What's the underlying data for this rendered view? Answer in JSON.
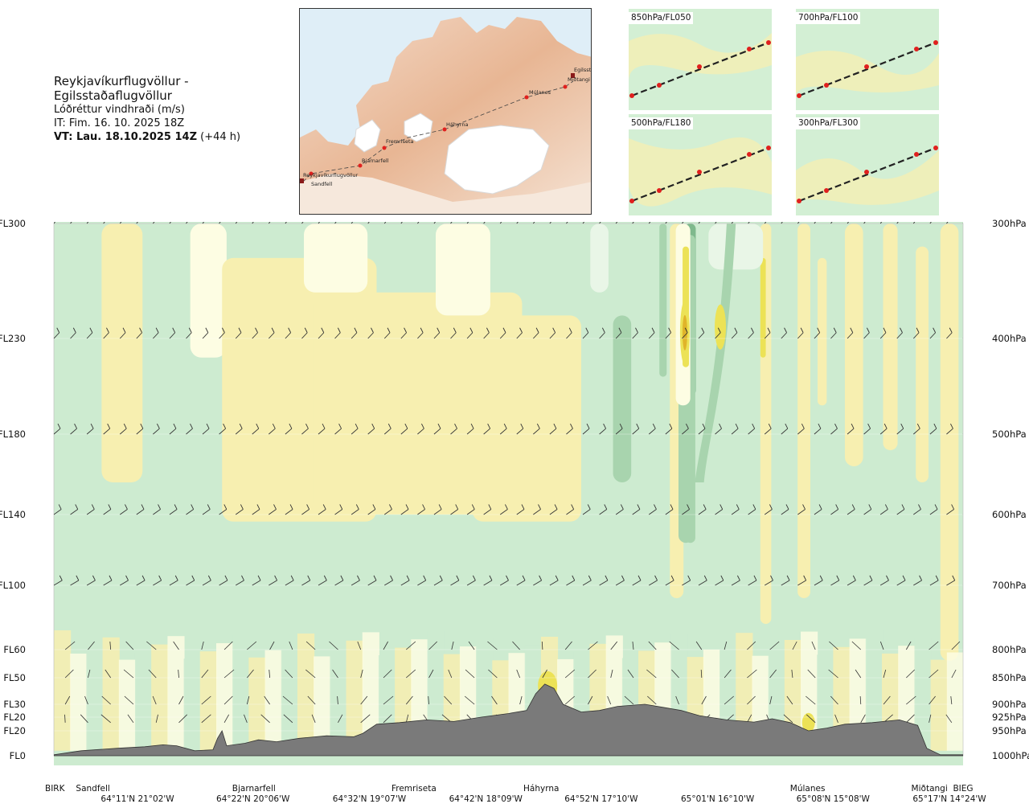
{
  "header": {
    "route_title": "Reykjavíkurflugvöllur - Egilsstaðaflugvöllur",
    "parameter": "Lóðréttur vindhraði (m/s)",
    "issue_time": "IT: Fim. 16. 10. 2025 18Z",
    "valid_label": "VT: Lau. 18.10.2025 14Z",
    "valid_offset": "(+44 h)"
  },
  "route_map": {
    "waypoints": [
      "Reykjavíkurflugvöllur",
      "Sandfell",
      "Bjarnarfell",
      "Fremriseta",
      "Háhyrna",
      "Múlanes",
      "Miðtangi",
      "Egilsstaðir"
    ],
    "colors": {
      "sea": "#dfeef7",
      "land_low": "#f6e7d8",
      "land_high": "#e3a57f",
      "glacier": "#ffffff",
      "route": "#444444",
      "waypoint": "#e0201e"
    }
  },
  "mini_maps": [
    {
      "label": "850hPa/FL050"
    },
    {
      "label": "700hPa/FL100"
    },
    {
      "label": "500hPa/FL180"
    },
    {
      "label": "300hPa/FL300"
    }
  ],
  "chart_data": {
    "type": "heatmap",
    "title": "Lóðréttur vindhraði (m/s)",
    "x_axis": {
      "waypoints": [
        {
          "name": "BIRK",
          "pos": 0.0
        },
        {
          "name": "Sandfell",
          "pos": 0.043
        },
        {
          "name": "Bjarnarfell",
          "pos": 0.22
        },
        {
          "name": "Fremriseta",
          "pos": 0.396
        },
        {
          "name": "Háhyrna",
          "pos": 0.536
        },
        {
          "name": "Múlanes",
          "pos": 0.829
        },
        {
          "name": "Miðtangi",
          "pos": 0.963
        },
        {
          "name": "BIEG",
          "pos": 1.0
        }
      ],
      "coordinates": [
        {
          "label": "64°11'N 21°02'W",
          "pos": 0.092
        },
        {
          "label": "64°22'N 20°06'W",
          "pos": 0.219
        },
        {
          "label": "64°32'N 19°07'W",
          "pos": 0.347
        },
        {
          "label": "64°42'N 18°09'W",
          "pos": 0.475
        },
        {
          "label": "64°52'N 17°10'W",
          "pos": 0.602
        },
        {
          "label": "65°01'N 16°10'W",
          "pos": 0.73
        },
        {
          "label": "65°08'N 15°08'W",
          "pos": 0.857
        },
        {
          "label": "65°17'N 14°24'W",
          "pos": 0.985
        }
      ]
    },
    "y_axis": {
      "levels": [
        {
          "fl": "FL300",
          "hpa": "300hPa",
          "p": 300
        },
        {
          "fl": "FL230",
          "hpa": "400hPa",
          "p": 400
        },
        {
          "fl": "FL180",
          "hpa": "500hPa",
          "p": 500
        },
        {
          "fl": "FL140",
          "hpa": "600hPa",
          "p": 600
        },
        {
          "fl": "FL100",
          "hpa": "700hPa",
          "p": 700
        },
        {
          "fl": "FL60",
          "hpa": "800hPa",
          "p": 800
        },
        {
          "fl": "FL50",
          "hpa": "850hPa",
          "p": 850
        },
        {
          "fl": "FL30",
          "hpa": "900hPa",
          "p": 900
        },
        {
          "fl": "FL20",
          "hpa": "925hPa",
          "p": 925
        },
        {
          "fl": "FL20",
          "hpa": "950hPa",
          "p": 950
        },
        {
          "fl": "FL0",
          "hpa": "1000hPa",
          "p": 1000
        }
      ],
      "range_hpa": [
        300,
        1000
      ]
    },
    "colors": {
      "strong_down": "#7fb98d",
      "moderate_down": "#a8d4ae",
      "weak_down": "#cdebd0",
      "near_zero_down": "#e9f6e7",
      "near_zero_up": "#fdfde3",
      "weak_up": "#f7efb0",
      "moderate_up": "#ece256",
      "strong_up": "#e0b42a",
      "terrain": "#7a7a7a",
      "barb": "#333333"
    },
    "terrain_profile_p": [
      [
        0.0,
        998
      ],
      [
        0.03,
        990
      ],
      [
        0.07,
        985
      ],
      [
        0.1,
        982
      ],
      [
        0.12,
        978
      ],
      [
        0.135,
        980
      ],
      [
        0.155,
        990
      ],
      [
        0.175,
        988
      ],
      [
        0.18,
        965
      ],
      [
        0.185,
        950
      ],
      [
        0.19,
        980
      ],
      [
        0.21,
        975
      ],
      [
        0.225,
        968
      ],
      [
        0.245,
        972
      ],
      [
        0.27,
        965
      ],
      [
        0.3,
        960
      ],
      [
        0.33,
        962
      ],
      [
        0.34,
        955
      ],
      [
        0.355,
        938
      ],
      [
        0.38,
        935
      ],
      [
        0.41,
        930
      ],
      [
        0.44,
        933
      ],
      [
        0.47,
        925
      ],
      [
        0.5,
        918
      ],
      [
        0.52,
        912
      ],
      [
        0.53,
        880
      ],
      [
        0.54,
        862
      ],
      [
        0.55,
        870
      ],
      [
        0.56,
        900
      ],
      [
        0.58,
        915
      ],
      [
        0.6,
        912
      ],
      [
        0.62,
        904
      ],
      [
        0.65,
        900
      ],
      [
        0.67,
        906
      ],
      [
        0.69,
        912
      ],
      [
        0.71,
        922
      ],
      [
        0.74,
        930
      ],
      [
        0.77,
        934
      ],
      [
        0.79,
        928
      ],
      [
        0.81,
        935
      ],
      [
        0.83,
        950
      ],
      [
        0.85,
        945
      ],
      [
        0.87,
        938
      ],
      [
        0.9,
        935
      ],
      [
        0.93,
        930
      ],
      [
        0.95,
        940
      ],
      [
        0.96,
        985
      ],
      [
        0.975,
        998
      ],
      [
        1.0,
        998
      ]
    ]
  }
}
